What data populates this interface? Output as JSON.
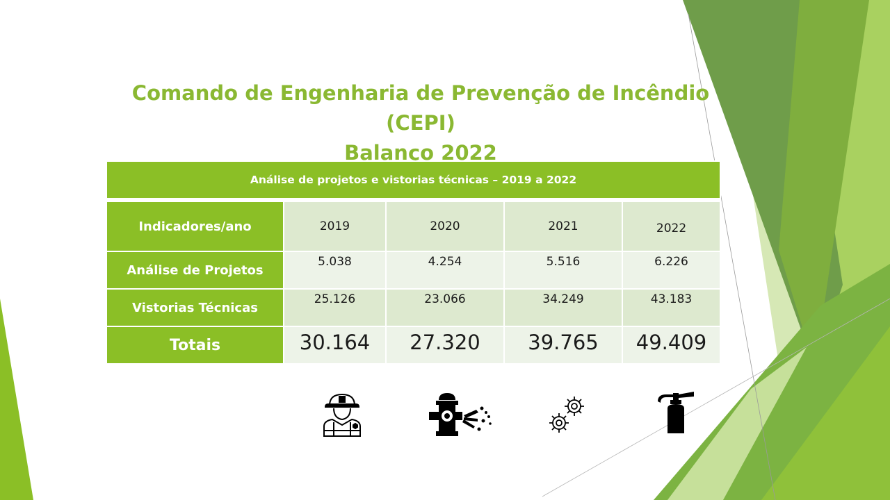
{
  "title": {
    "line1": "Comando de Engenharia de Prevenção de Incêndio (CEPI)",
    "line2": "Balanço 2022"
  },
  "table": {
    "caption": "Análise de projetos e vistorias técnicas – 2019 a 2022",
    "header_label": "Indicadores/ano",
    "years": [
      "2019",
      "2020",
      "2021",
      "2022"
    ],
    "rows": [
      {
        "label": "Análise  de Projetos",
        "values": [
          "5.038",
          "4.254",
          "5.516",
          "6.226"
        ]
      },
      {
        "label": "Vistorias Técnicas",
        "values": [
          "25.126",
          "23.066",
          "34.249",
          "43.183"
        ]
      }
    ],
    "totals": {
      "label": "Totais",
      "values": [
        "30.164",
        "27.320",
        "39.765",
        "49.409"
      ]
    }
  },
  "icons": [
    "firefighter-icon",
    "fire-hydrant-icon",
    "gears-icon",
    "fire-extinguisher-icon"
  ],
  "colors": {
    "accent_green": "#8bbf26",
    "title_green": "#8ab832",
    "cell_light_a": "#dde9cf",
    "cell_light_b": "#edf3e8"
  }
}
